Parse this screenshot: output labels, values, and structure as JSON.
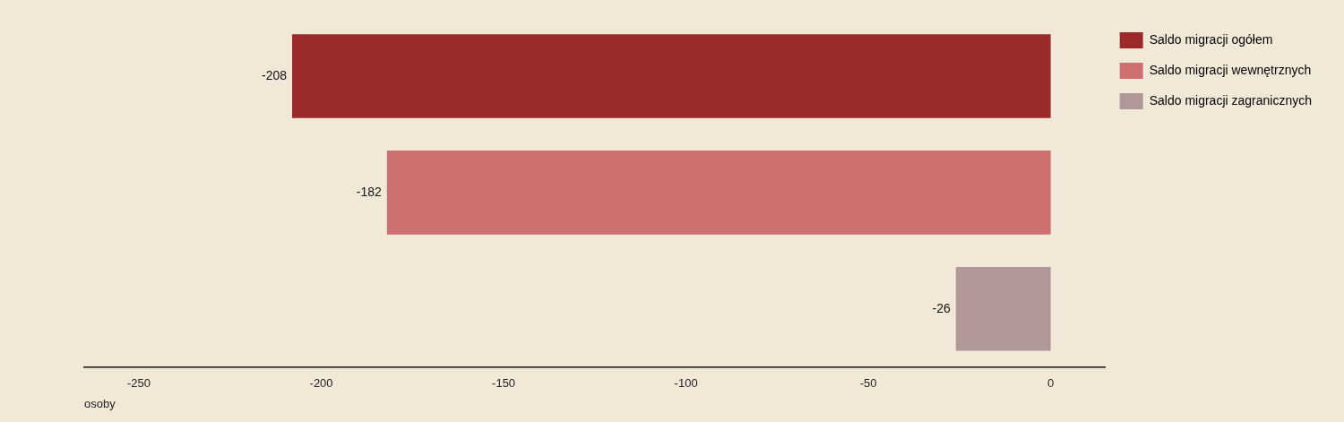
{
  "chart_data": {
    "type": "bar",
    "orientation": "horizontal",
    "categories": [
      "Saldo migracji ogółem",
      "Saldo migracji wewnętrznych",
      "Saldo migracji zagranicznych"
    ],
    "values": [
      -208,
      -182,
      -26
    ],
    "colors": [
      "#9b2b2b",
      "#cc7070",
      "#b09898"
    ],
    "xlabel": "osoby",
    "xlim": [
      -265,
      15
    ],
    "xticks": [
      -250,
      -200,
      -150,
      -100,
      -50,
      0
    ],
    "data_labels": true,
    "tick_labels": "x",
    "legend": "right",
    "grid": false
  }
}
